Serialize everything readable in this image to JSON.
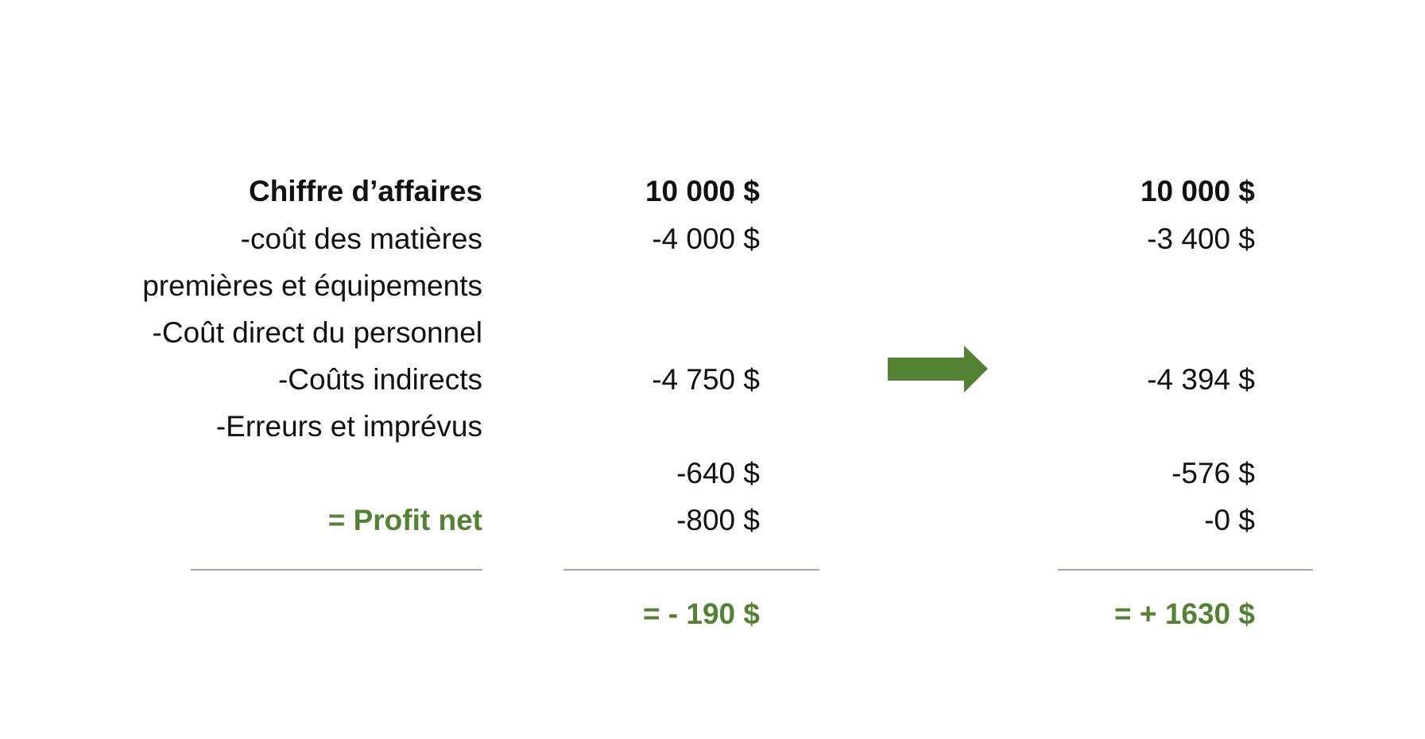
{
  "colors": {
    "accent": "#548235",
    "text": "#111111",
    "rule": "#a5a89a"
  },
  "labels": [
    "Chiffre d’affaires",
    "-coût des matières",
    "premières et équipements",
    "-Coût direct du personnel",
    "-Coûts indirects",
    "-Erreurs et imprévus",
    "= Profit net"
  ],
  "before": {
    "revenue": "10 000 $",
    "materials": "-4 000 $",
    "indirect": "-4 750 $",
    "errors": "-640 $",
    "line5": "-800 $",
    "total": "= - 190 $"
  },
  "after": {
    "revenue": "10 000 $",
    "materials": "-3 400 $",
    "indirect": "-4 394 $",
    "errors": "-576 $",
    "line5": "-0 $",
    "total": "= + 1630 $"
  },
  "arrow_icon": "arrow-right-icon"
}
